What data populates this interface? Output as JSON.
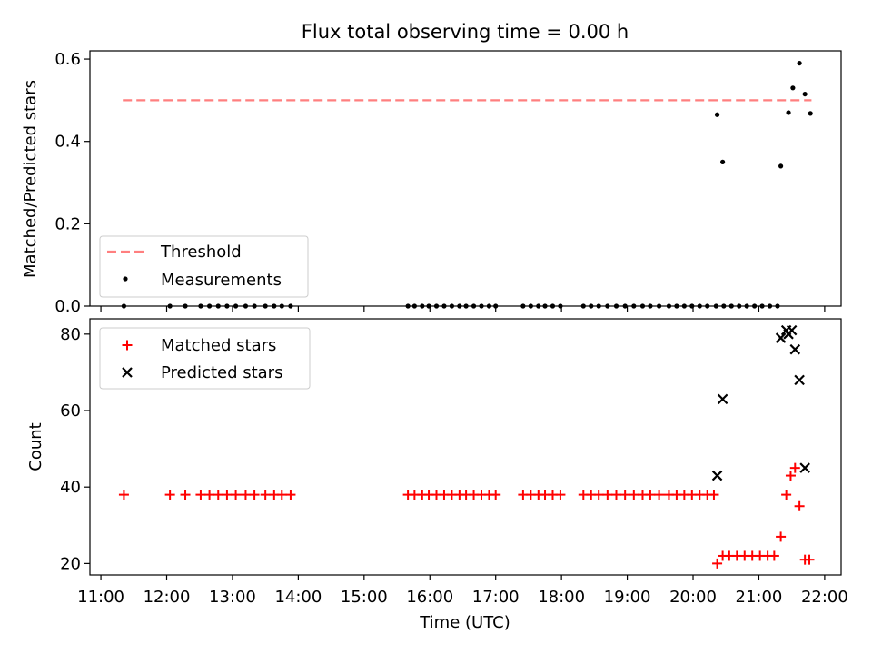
{
  "colors": {
    "threshold": "#ff7f7f",
    "matched": "#ff0000",
    "predicted": "#000000",
    "measurement": "#000000"
  },
  "chart_data": {
    "title": "Flux total observing time = 0.00 h",
    "xlabel": "Time (UTC)",
    "xlim": [
      "10:50",
      "22:15"
    ],
    "xticks": [
      "11:00",
      "12:00",
      "13:00",
      "14:00",
      "15:00",
      "16:00",
      "17:00",
      "18:00",
      "19:00",
      "20:00",
      "21:00",
      "22:00"
    ],
    "top": {
      "type": "scatter",
      "ylabel": "Matched/Predicted stars",
      "ylim": [
        0,
        0.62
      ],
      "yticks": [
        "0.0",
        "0.2",
        "0.4",
        "0.6"
      ],
      "legend_position": "lower-left",
      "threshold": {
        "name": "Threshold",
        "y": 0.5,
        "x_start": "11:20",
        "x_end": "21:48"
      },
      "series": [
        {
          "name": "Measurements",
          "x": [
            "11:21",
            "12:03",
            "12:17",
            "12:31",
            "12:39",
            "12:47",
            "12:55",
            "13:03",
            "13:12",
            "13:20",
            "13:30",
            "13:38",
            "13:45",
            "13:53",
            "15:40",
            "15:46",
            "15:53",
            "15:59",
            "16:06",
            "16:13",
            "16:20",
            "16:27",
            "16:33",
            "16:40",
            "16:47",
            "16:54",
            "17:00",
            "17:25",
            "17:32",
            "17:39",
            "17:45",
            "17:52",
            "17:59",
            "18:20",
            "18:27",
            "18:34",
            "18:42",
            "18:50",
            "18:58",
            "19:06",
            "19:14",
            "19:21",
            "19:29",
            "19:38",
            "19:45",
            "19:52",
            "19:59",
            "20:06",
            "20:13",
            "20:21",
            "20:28",
            "20:35",
            "20:42",
            "20:49",
            "20:56",
            "21:03",
            "21:10",
            "21:17",
            "20:22",
            "20:27",
            "21:20",
            "21:27",
            "21:31",
            "21:37",
            "21:42",
            "21:47"
          ],
          "y": [
            0,
            0,
            0,
            0,
            0,
            0,
            0,
            0,
            0,
            0,
            0,
            0,
            0,
            0,
            0,
            0,
            0,
            0,
            0,
            0,
            0,
            0,
            0,
            0,
            0,
            0,
            0,
            0,
            0,
            0,
            0,
            0,
            0,
            0,
            0,
            0,
            0,
            0,
            0,
            0,
            0,
            0,
            0,
            0,
            0,
            0,
            0,
            0,
            0,
            0,
            0,
            0,
            0,
            0,
            0,
            0,
            0,
            0,
            0.465,
            0.35,
            0.34,
            0.47,
            0.53,
            0.59,
            0.515,
            0.468
          ]
        }
      ]
    },
    "bottom": {
      "type": "scatter",
      "ylabel": "Count",
      "ylim": [
        17,
        84
      ],
      "yticks": [
        "20",
        "40",
        "60",
        "80"
      ],
      "legend_position": "upper-left",
      "series": [
        {
          "name": "Matched stars",
          "marker": "+",
          "x": [
            "11:21",
            "12:03",
            "12:17",
            "12:31",
            "12:39",
            "12:47",
            "12:55",
            "13:03",
            "13:12",
            "13:20",
            "13:30",
            "13:38",
            "13:45",
            "13:53",
            "15:40",
            "15:46",
            "15:53",
            "15:59",
            "16:06",
            "16:13",
            "16:20",
            "16:27",
            "16:33",
            "16:40",
            "16:47",
            "16:54",
            "17:00",
            "17:25",
            "17:32",
            "17:39",
            "17:45",
            "17:52",
            "17:59",
            "18:20",
            "18:27",
            "18:34",
            "18:42",
            "18:50",
            "18:58",
            "19:06",
            "19:14",
            "19:21",
            "19:29",
            "19:38",
            "19:45",
            "19:52",
            "19:59",
            "20:06",
            "20:13",
            "20:19",
            "20:22",
            "20:27",
            "20:33",
            "20:40",
            "20:47",
            "20:54",
            "21:01",
            "21:08",
            "21:14",
            "21:20",
            "21:25",
            "21:29",
            "21:33",
            "21:37",
            "21:42",
            "21:46"
          ],
          "y": [
            38,
            38,
            38,
            38,
            38,
            38,
            38,
            38,
            38,
            38,
            38,
            38,
            38,
            38,
            38,
            38,
            38,
            38,
            38,
            38,
            38,
            38,
            38,
            38,
            38,
            38,
            38,
            38,
            38,
            38,
            38,
            38,
            38,
            38,
            38,
            38,
            38,
            38,
            38,
            38,
            38,
            38,
            38,
            38,
            38,
            38,
            38,
            38,
            38,
            38,
            20,
            22,
            22,
            22,
            22,
            22,
            22,
            22,
            22,
            27,
            38,
            43,
            45,
            35,
            21,
            21
          ]
        },
        {
          "name": "Predicted stars",
          "marker": "x",
          "x": [
            "20:22",
            "20:27",
            "21:20",
            "21:25",
            "21:27",
            "21:30",
            "21:33",
            "21:37",
            "21:42"
          ],
          "y": [
            43,
            63,
            79,
            81,
            80,
            81,
            76,
            68,
            45
          ]
        }
      ]
    }
  }
}
